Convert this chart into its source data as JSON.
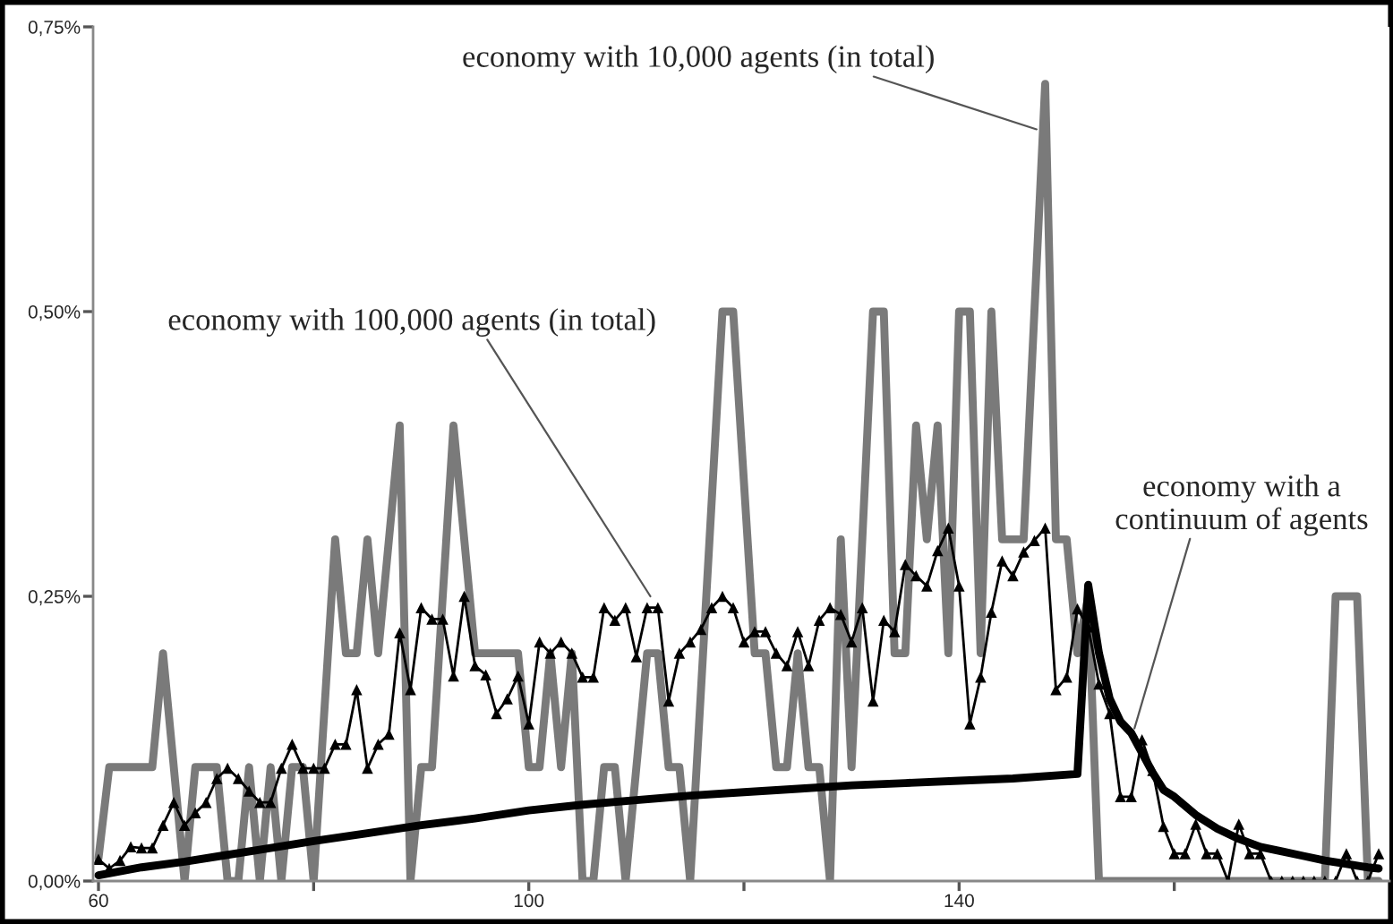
{
  "chart_data": {
    "type": "line",
    "xlim": [
      59.5,
      180
    ],
    "xticks": [
      60,
      {
        "value": 80,
        "label": null
      },
      100,
      {
        "value": 120,
        "label": null
      },
      140,
      {
        "value": 160,
        "label": null
      }
    ],
    "ylim": [
      0,
      0.75
    ],
    "yticks": [
      {
        "value": 0,
        "label": "0,00%"
      },
      {
        "value": 0.25,
        "label": "0,25%"
      },
      {
        "value": 0.5,
        "label": "0,50%"
      },
      {
        "value": 0.75,
        "label": "0,75%"
      }
    ],
    "grid": false,
    "legend": false,
    "series": [
      {
        "color": "#7a7a7a",
        "marker": "none",
        "x": [
          60,
          61,
          65,
          66,
          68,
          69,
          71,
          72,
          73,
          74,
          75,
          76,
          77,
          78,
          79,
          80,
          82,
          83,
          84,
          85,
          86,
          88,
          89,
          90,
          91,
          93,
          95,
          99,
          100,
          101,
          102,
          103,
          104,
          105,
          106,
          107,
          108,
          109,
          110,
          111,
          112,
          113,
          114,
          115,
          118,
          119,
          121,
          122,
          123,
          124,
          125,
          126,
          127,
          128,
          129,
          130,
          132,
          133,
          134,
          135,
          136,
          137,
          138,
          139,
          140,
          141,
          142,
          143,
          144,
          146,
          148,
          149,
          150,
          151,
          152,
          153,
          174,
          175,
          177,
          178,
          179
        ],
        "values": [
          0.02,
          0.1,
          0.1,
          0.2,
          0,
          0.1,
          0.1,
          0,
          0,
          0.1,
          0,
          0.1,
          0,
          0.1,
          0.1,
          0,
          0.3,
          0.2,
          0.2,
          0.3,
          0.2,
          0.4,
          0,
          0.1,
          0.1,
          0.4,
          0.2,
          0.2,
          0.1,
          0.1,
          0.2,
          0.1,
          0.2,
          0,
          0,
          0.1,
          0.1,
          0,
          0.1,
          0.2,
          0.2,
          0.1,
          0.1,
          0,
          0.5,
          0.5,
          0.2,
          0.2,
          0.1,
          0.1,
          0.2,
          0.1,
          0.1,
          0,
          0.3,
          0.1,
          0.5,
          0.5,
          0.2,
          0.2,
          0.4,
          0.3,
          0.4,
          0.2,
          0.5,
          0.5,
          0.2,
          0.5,
          0.3,
          0.3,
          0.7,
          0.3,
          0.3,
          0.2,
          0.25,
          0,
          0,
          0.25,
          0.25,
          0,
          0
        ]
      },
      {
        "color": "#000000",
        "marker": "triangle",
        "x": [
          60,
          61,
          62,
          63,
          64,
          65,
          66,
          67,
          68,
          69,
          70,
          71,
          72,
          73,
          74,
          75,
          76,
          77,
          78,
          79,
          80,
          81,
          82,
          83,
          84,
          85,
          86,
          87,
          88,
          89,
          90,
          91,
          92,
          93,
          94,
          95,
          96,
          97,
          98,
          99,
          100,
          101,
          102,
          103,
          104,
          105,
          106,
          107,
          108,
          109,
          110,
          111,
          112,
          113,
          114,
          115,
          116,
          117,
          118,
          119,
          120,
          121,
          122,
          123,
          124,
          125,
          126,
          127,
          128,
          129,
          130,
          131,
          132,
          133,
          134,
          135,
          136,
          137,
          138,
          139,
          140,
          141,
          142,
          143,
          144,
          145,
          146,
          147,
          148,
          149,
          150,
          151,
          152,
          153,
          154,
          155,
          156,
          157,
          158,
          159,
          160,
          161,
          162,
          163,
          164,
          165,
          166,
          167,
          168,
          169,
          170,
          171,
          172,
          173,
          174,
          175,
          176,
          177,
          178,
          179
        ],
        "values": [
          0.019,
          0.011,
          0.018,
          0.03,
          0.029,
          0.029,
          0.049,
          0.069,
          0.049,
          0.06,
          0.069,
          0.09,
          0.099,
          0.09,
          0.079,
          0.069,
          0.069,
          0.099,
          0.12,
          0.099,
          0.099,
          0.099,
          0.12,
          0.12,
          0.168,
          0.099,
          0.12,
          0.129,
          0.218,
          0.168,
          0.24,
          0.23,
          0.23,
          0.18,
          0.25,
          0.189,
          0.181,
          0.147,
          0.16,
          0.18,
          0.138,
          0.21,
          0.2,
          0.21,
          0.2,
          0.179,
          0.179,
          0.24,
          0.229,
          0.24,
          0.197,
          0.24,
          0.24,
          0.158,
          0.2,
          0.21,
          0.221,
          0.24,
          0.25,
          0.24,
          0.21,
          0.219,
          0.219,
          0.2,
          0.189,
          0.219,
          0.189,
          0.229,
          0.24,
          0.234,
          0.21,
          0.24,
          0.158,
          0.229,
          0.219,
          0.278,
          0.268,
          0.259,
          0.29,
          0.31,
          0.259,
          0.138,
          0.179,
          0.236,
          0.281,
          0.268,
          0.289,
          0.299,
          0.31,
          0.168,
          0.179,
          0.239,
          0.223,
          0.173,
          0.147,
          0.074,
          0.074,
          0.124,
          0.097,
          0.048,
          0.024,
          0.024,
          0.05,
          0.024,
          0.024,
          0,
          0.05,
          0.024,
          0.024,
          0,
          0,
          0,
          0,
          0,
          0,
          0,
          0.024,
          0,
          0,
          0.024
        ]
      },
      {
        "color": "#000000",
        "marker": "none",
        "x": [
          60,
          64,
          68,
          72,
          76,
          80,
          85,
          90,
          95,
          100,
          105,
          110,
          115,
          120,
          125,
          130,
          135,
          140,
          145,
          151,
          152,
          153,
          154,
          155,
          156,
          158,
          159,
          160,
          162,
          164,
          166,
          168,
          170,
          172,
          174,
          176,
          178,
          179
        ],
        "values": [
          0.005,
          0.012,
          0.017,
          0.023,
          0.029,
          0.035,
          0.042,
          0.049,
          0.055,
          0.062,
          0.067,
          0.071,
          0.075,
          0.078,
          0.081,
          0.084,
          0.086,
          0.088,
          0.09,
          0.094,
          0.26,
          0.2,
          0.16,
          0.14,
          0.13,
          0.095,
          0.08,
          0.074,
          0.058,
          0.046,
          0.037,
          0.03,
          0.026,
          0.022,
          0.018,
          0.015,
          0.012,
          0.011
        ]
      }
    ],
    "annotations": [
      {
        "text": "economy with 10,000 agents (in total)",
        "x": 147.2,
        "y": 0.66
      },
      {
        "text": "economy with 100,000 agents (in total)",
        "x": 111.3,
        "y": 0.25
      },
      {
        "text": "economy with a\ncontinuum of agents",
        "x": 156.3,
        "y": 0.134
      }
    ]
  }
}
